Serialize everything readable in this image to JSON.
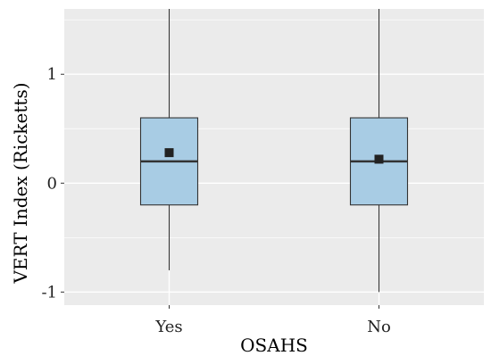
{
  "chart_data": {
    "type": "box",
    "title": "",
    "xlabel": "OSAHS",
    "ylabel": "VERT Index (Ricketts)",
    "ylim": [
      -1.12,
      1.6
    ],
    "yticks": [
      -1,
      0,
      1
    ],
    "ytick_labels": [
      "-1",
      "0",
      "1"
    ],
    "grid": true,
    "categories": [
      "Yes",
      "No"
    ],
    "boxes": [
      {
        "category": "Yes",
        "whisker_low": -0.8,
        "q1": -0.2,
        "median": 0.2,
        "q3": 0.6,
        "whisker_high": 1.6,
        "mean": 0.28
      },
      {
        "category": "No",
        "whisker_low": -1.0,
        "q1": -0.2,
        "median": 0.2,
        "q3": 0.6,
        "whisker_high": 1.6,
        "mean": 0.22
      }
    ],
    "colors": {
      "panel": "#ebebeb",
      "grid": "#ffffff",
      "box_fill": "#a8cce4",
      "box_stroke": "#333333",
      "mean_marker": "#222222"
    }
  }
}
